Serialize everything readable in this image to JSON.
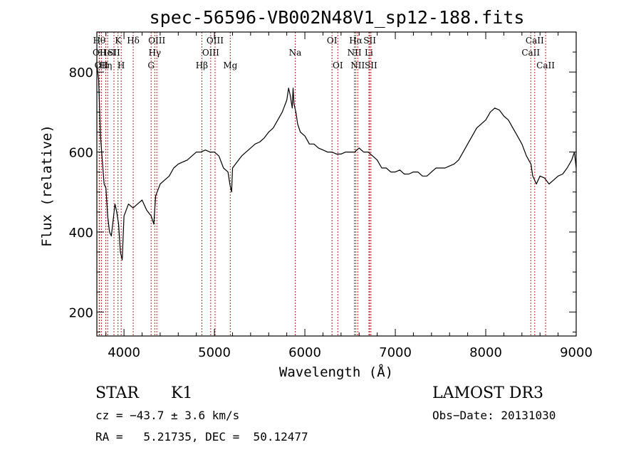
{
  "chart_data": {
    "type": "line",
    "title": "spec-56596-VB002N48V1_sp12-188.fits",
    "xlabel": "Wavelength (Å)",
    "ylabel": "Flux (relative)",
    "xlim": [
      3700,
      9000
    ],
    "ylim": [
      140,
      900
    ],
    "xticks": [
      4000,
      5000,
      6000,
      7000,
      8000,
      9000
    ],
    "yticks": [
      200,
      400,
      600,
      800
    ],
    "grid": false,
    "line_color": "#000000",
    "marker_color": "#b22222",
    "spectrum": {
      "x": [
        3700,
        3720,
        3740,
        3760,
        3780,
        3800,
        3820,
        3840,
        3860,
        3880,
        3900,
        3920,
        3940,
        3960,
        3980,
        4000,
        4050,
        4100,
        4150,
        4200,
        4250,
        4300,
        4330,
        4350,
        4400,
        4450,
        4500,
        4550,
        4600,
        4650,
        4700,
        4750,
        4800,
        4850,
        4900,
        4950,
        5000,
        5050,
        5100,
        5150,
        5170,
        5190,
        5200,
        5250,
        5300,
        5350,
        5400,
        5450,
        5500,
        5550,
        5600,
        5650,
        5700,
        5750,
        5800,
        5820,
        5840,
        5860,
        5870,
        5880,
        5900,
        5920,
        5950,
        6000,
        6050,
        6100,
        6150,
        6200,
        6250,
        6300,
        6350,
        6400,
        6450,
        6500,
        6550,
        6600,
        6650,
        6700,
        6750,
        6800,
        6850,
        6900,
        6950,
        7000,
        7050,
        7100,
        7150,
        7200,
        7250,
        7300,
        7350,
        7400,
        7450,
        7500,
        7550,
        7600,
        7650,
        7700,
        7750,
        7800,
        7850,
        7900,
        7950,
        8000,
        8050,
        8100,
        8150,
        8200,
        8250,
        8300,
        8350,
        8400,
        8450,
        8500,
        8520,
        8540,
        8560,
        8600,
        8650,
        8700,
        8750,
        8800,
        8850,
        8900,
        8950,
        8980,
        9000
      ],
      "y": [
        820,
        780,
        640,
        580,
        520,
        510,
        440,
        400,
        390,
        430,
        470,
        450,
        420,
        350,
        330,
        440,
        470,
        460,
        470,
        480,
        455,
        440,
        420,
        490,
        520,
        530,
        540,
        560,
        570,
        575,
        580,
        590,
        600,
        600,
        605,
        600,
        600,
        590,
        560,
        550,
        520,
        500,
        560,
        575,
        590,
        600,
        610,
        620,
        625,
        635,
        650,
        660,
        680,
        700,
        730,
        760,
        740,
        710,
        760,
        720,
        700,
        670,
        650,
        640,
        620,
        620,
        610,
        605,
        600,
        600,
        595,
        595,
        600,
        600,
        600,
        610,
        600,
        600,
        590,
        580,
        560,
        560,
        550,
        550,
        555,
        545,
        545,
        550,
        550,
        540,
        540,
        550,
        560,
        560,
        560,
        565,
        570,
        580,
        600,
        620,
        640,
        660,
        670,
        680,
        700,
        710,
        705,
        690,
        680,
        660,
        640,
        620,
        590,
        570,
        540,
        530,
        520,
        540,
        535,
        520,
        530,
        540,
        545,
        560,
        580,
        600,
        560
      ]
    },
    "annotations": [
      {
        "x": 3726,
        "label": "Hθ",
        "tier": 1
      },
      {
        "x": 3729,
        "label": "OII",
        "tier": 2
      },
      {
        "x": 3750,
        "label": "OII",
        "tier": 3
      },
      {
        "x": 3798,
        "label": "Hη",
        "tier": 3
      },
      {
        "x": 3820,
        "label": "HeI",
        "tier": 2
      },
      {
        "x": 3889,
        "label": "SII",
        "tier": 2
      },
      {
        "x": 3934,
        "label": "K",
        "tier": 1
      },
      {
        "x": 3969,
        "label": "H",
        "tier": 3
      },
      {
        "x": 4102,
        "label": "Hδ",
        "tier": 1
      },
      {
        "x": 4300,
        "label": "G",
        "tier": 3
      },
      {
        "x": 4340,
        "label": "Hγ",
        "tier": 2
      },
      {
        "x": 4363,
        "label": "OIII",
        "tier": 1
      },
      {
        "x": 4861,
        "label": "Hβ",
        "tier": 3
      },
      {
        "x": 4959,
        "label": "OIII",
        "tier": 2
      },
      {
        "x": 5007,
        "label": "OIII",
        "tier": 1
      },
      {
        "x": 5175,
        "label": "Mg",
        "tier": 3
      },
      {
        "x": 5893,
        "label": "Na",
        "tier": 2
      },
      {
        "x": 6300,
        "label": "OI",
        "tier": 1
      },
      {
        "x": 6364,
        "label": "OI",
        "tier": 3
      },
      {
        "x": 6548,
        "label": "NII",
        "tier": 2
      },
      {
        "x": 6563,
        "label": "Hα",
        "tier": 1
      },
      {
        "x": 6584,
        "label": "NII",
        "tier": 3
      },
      {
        "x": 6708,
        "label": "Li",
        "tier": 2
      },
      {
        "x": 6717,
        "label": "SII",
        "tier": 1
      },
      {
        "x": 6731,
        "label": "SII",
        "tier": 3
      },
      {
        "x": 8498,
        "label": "CaII",
        "tier": 2
      },
      {
        "x": 8542,
        "label": "CaII",
        "tier": 1
      },
      {
        "x": 8662,
        "label": "CaII",
        "tier": 3
      }
    ]
  },
  "info": {
    "class": "STAR",
    "subclass": "K1",
    "survey": "LAMOST DR3",
    "cz": "cz = −43.7 ± 3.6 km/s",
    "obs_date": "Obs−Date: 20131030",
    "coords": "RA =   5.21735, DEC =  50.12477"
  }
}
